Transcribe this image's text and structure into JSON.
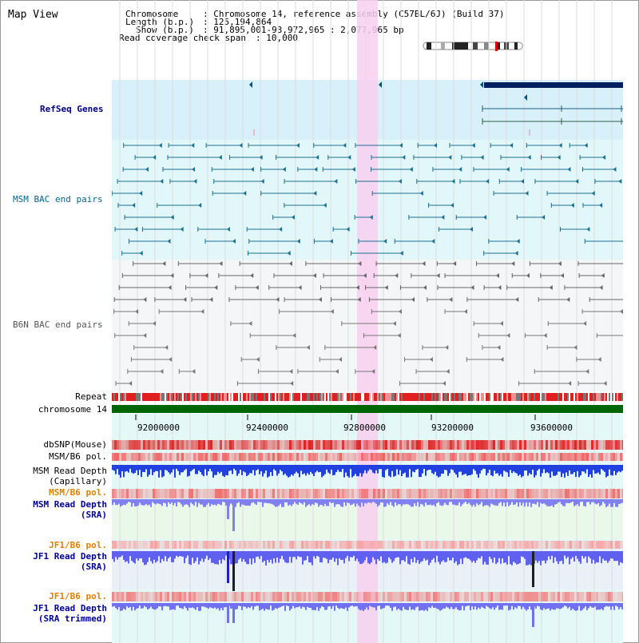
{
  "title": "Map View",
  "header": {
    "chromosome_label": "Chromosome",
    "chromosome_value": ": Chromosome 14, reference assembly (C57BL/6J) (Build 37)",
    "length_label": "Length (b.p.)",
    "length_value": ": 125,194,864",
    "show_label": "Show (b.p.)",
    "show_value": ": 91,895,001-93,972,965 : 2,077,965 bp",
    "coverage_label": "Read coverage check span",
    "coverage_value": ": 10,000"
  },
  "tracks": {
    "refseq": "RefSeq Genes",
    "msm_bac": "MSM BAC end pairs",
    "b6n_bac": "B6N BAC end pairs",
    "repeat": "Repeat",
    "chromosome": "chromosome 14",
    "dbsnp": "dbSNP(Mouse)",
    "msm_b6_pol_1": "MSM/B6 pol.",
    "msm_depth_cap_1": "MSM Read Depth",
    "msm_depth_cap_2": "(Capillary)",
    "msm_b6_pol_2": "MSM/B6 pol.",
    "msm_depth_sra_1": "MSM Read Depth",
    "msm_depth_sra_2": "(SRA)",
    "jf1_b6_pol_1": "JF1/B6 pol.",
    "jf1_depth_sra_1": "JF1 Read Depth",
    "jf1_depth_sra_2": "(SRA)",
    "jf1_b6_pol_2": "JF1/B6 pol.",
    "jf1_depth_trim_1": "JF1 Read Depth",
    "jf1_depth_trim_2": "(SRA trimmed)"
  },
  "axis": {
    "ticks": [
      "92000000",
      "92400000",
      "92800000",
      "93200000",
      "93600000"
    ]
  },
  "colors": {
    "refseq_label": "#000080",
    "msm_label": "#006699",
    "b6n_label": "#555555",
    "orange_label": "#e08000",
    "blue_label": "#000099",
    "chromosome_bar": "#006600",
    "highlight": "#f8d0f0",
    "gene_bar": "#002060"
  }
}
